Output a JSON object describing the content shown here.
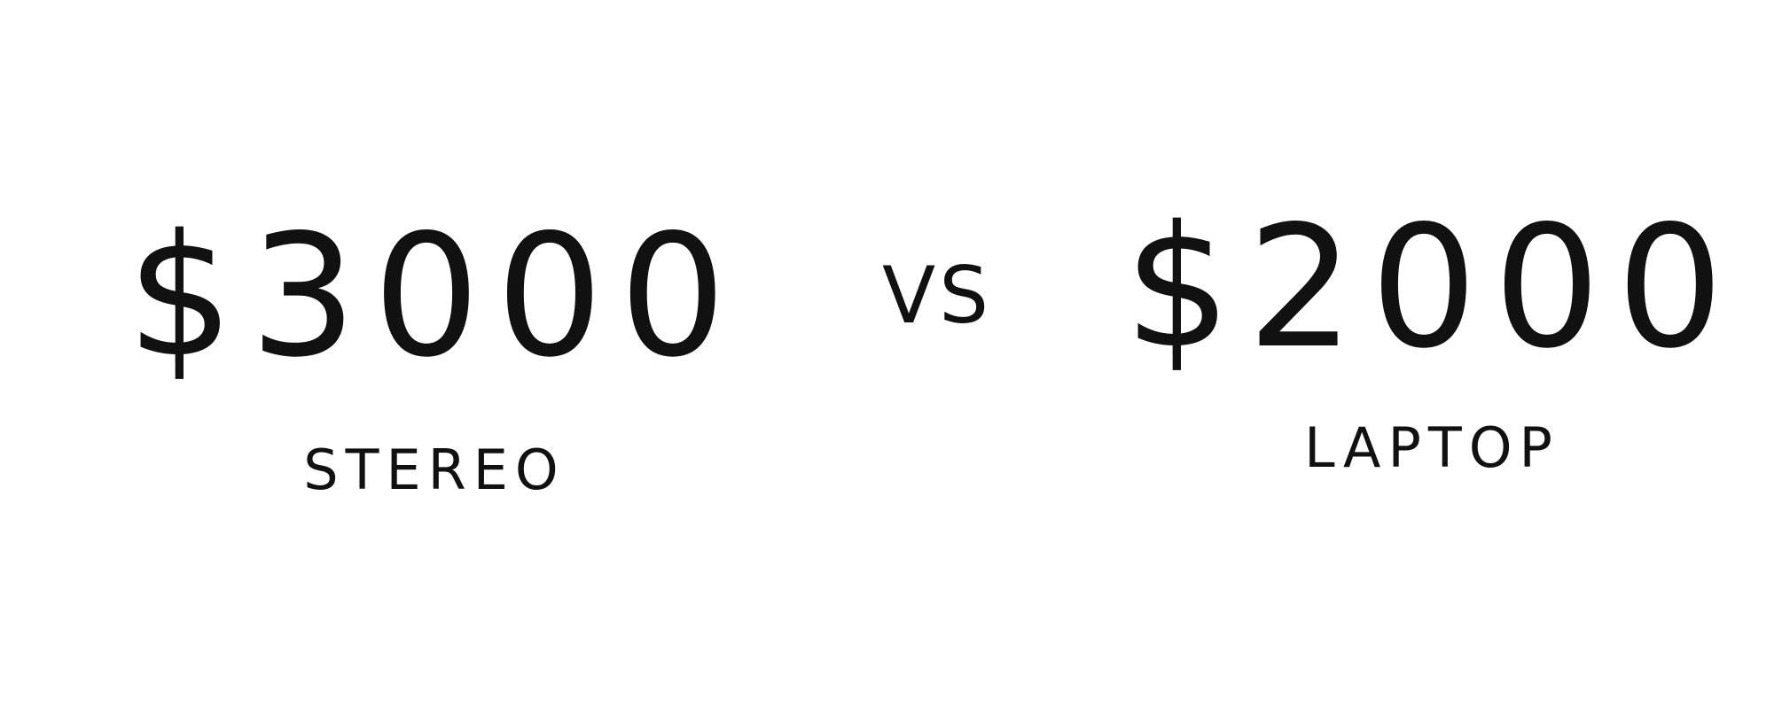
{
  "comparison": {
    "left": {
      "price": "$3000",
      "label": "STEREO"
    },
    "separator": "VS",
    "right": {
      "price": "$2000",
      "label": "LAPTOP"
    }
  },
  "colors": {
    "ink": "#111111",
    "background": "#ffffff"
  }
}
